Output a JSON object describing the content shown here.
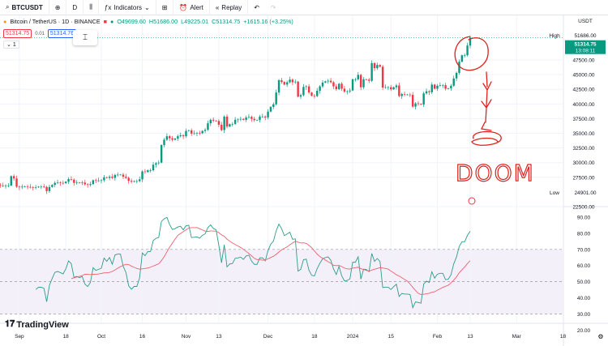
{
  "toolbar": {
    "symbol": "BTCUSDT",
    "interval": "D",
    "indicators": "Indicators",
    "alert": "Alert",
    "replay": "Replay"
  },
  "legend": {
    "title": "Bitcoin / TetherUS · 1D · BINANCE",
    "open": "O49699.60",
    "high": "H51686.00",
    "low": "L49225.01",
    "close": "C51314.75",
    "change": "+1615.16 (+3.25%)"
  },
  "trade": {
    "sell": "51314.75",
    "spread": "0.01",
    "buy": "51314.76"
  },
  "collapse": "1",
  "price_axis": {
    "currency": "USDT",
    "high_label": "High",
    "high_value": "51686.00",
    "last": "51314.75",
    "countdown": "13:08:11",
    "low_label": "Low",
    "low_value": "24901.00",
    "ticks": [
      "47500.00",
      "45000.00",
      "42500.00",
      "40000.00",
      "37500.00",
      "35000.00",
      "32500.00",
      "30000.00",
      "27500.00",
      "22500.00"
    ]
  },
  "rsi_axis": {
    "ticks": [
      "90.00",
      "80.00",
      "70.00",
      "60.00",
      "50.00",
      "40.00",
      "30.00",
      "20.00"
    ],
    "upper_band": 70,
    "middle": 50,
    "lower_band": 30
  },
  "time_axis": [
    {
      "label": "Sep",
      "date": "2023-09-01"
    },
    {
      "label": "18",
      "date": "2023-09-18"
    },
    {
      "label": "Oct",
      "date": "2023-10-01"
    },
    {
      "label": "16",
      "date": "2023-10-16"
    },
    {
      "label": "Nov",
      "date": "2023-11-01"
    },
    {
      "label": "13",
      "date": "2023-11-13"
    },
    {
      "label": "Dec",
      "date": "2023-12-01"
    },
    {
      "label": "18",
      "date": "2023-12-18"
    },
    {
      "label": "2024",
      "date": "2024-01-01"
    },
    {
      "label": "15",
      "date": "2024-01-15"
    },
    {
      "label": "Feb",
      "date": "2024-02-01"
    },
    {
      "label": "13",
      "date": "2024-02-13"
    },
    {
      "label": "Mar",
      "date": "2024-03-01"
    },
    {
      "label": "18",
      "date": "2024-03-18"
    }
  ],
  "watermark": "TradingView",
  "annotation": {
    "text": "DOOM",
    "color": "#e0201b"
  },
  "colors": {
    "up": "#089981",
    "down": "#f23645",
    "rsi": "#2c9d8a",
    "rsi_ma": "#f0606e",
    "band": "#7e57c2"
  },
  "chart_data": {
    "type": "candlestick",
    "first_date": "2023-08-24",
    "interval": "1D",
    "closes": [
      26200,
      26100,
      26050,
      26100,
      26100,
      27700,
      27300,
      25900,
      25800,
      25900,
      25950,
      25850,
      25800,
      25750,
      25800,
      25900,
      25900,
      25850,
      25150,
      25850,
      26200,
      26550,
      26600,
      26550,
      26500,
      26750,
      27200,
      27100,
      26550,
      26600,
      26550,
      26600,
      26300,
      26200,
      26350,
      27000,
      26900,
      26950,
      27000,
      27500,
      27400,
      27600,
      27400,
      27900,
      27950,
      27950,
      27600,
      27400,
      26900,
      26750,
      26850,
      26850,
      27150,
      28500,
      28400,
      28700,
      28700,
      29650,
      29900,
      30000,
      33000,
      33900,
      34500,
      34150,
      33900,
      34100,
      34500,
      34650,
      34500,
      35400,
      35500,
      34950,
      35000,
      35050,
      35000,
      35400,
      35600,
      36700,
      37300,
      37150,
      37100,
      36450,
      35550,
      37850,
      36150,
      36550,
      36600,
      37300,
      37350,
      37450,
      37300,
      37700,
      37800,
      37450,
      37250,
      37250,
      37850,
      37850,
      37700,
      38700,
      39500,
      39950,
      41950,
      44050,
      43750,
      43300,
      43700,
      44150,
      43700,
      43800,
      41250,
      41500,
      42900,
      43000,
      41950,
      41400,
      41350,
      42250,
      43000,
      43650,
      43850,
      43950,
      43700,
      43000,
      42520,
      43450,
      42600,
      42100,
      42150,
      42300,
      44200,
      44200,
      44950,
      42850,
      44200,
      44150,
      43950,
      46950,
      46100,
      46650,
      46350,
      42800,
      42850,
      42850,
      42500,
      42850,
      43150,
      41350,
      41700,
      41600,
      41600,
      41550,
      39550,
      40100,
      40000,
      39900,
      41800,
      42150,
      42000,
      43300,
      42600,
      43100,
      43200,
      43200,
      42600,
      42650,
      43100,
      44350,
      45300,
      47200,
      48300,
      48300,
      49950,
      51310
    ],
    "price_range": [
      22500,
      51686
    ],
    "indicator": {
      "type": "RSI",
      "length": 14,
      "ma_length": 14,
      "range": [
        20,
        90
      ]
    }
  }
}
